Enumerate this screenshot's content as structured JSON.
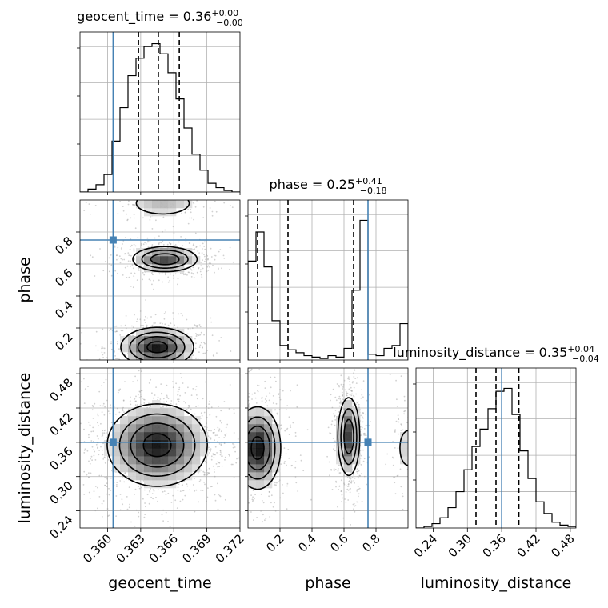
{
  "chart_data": {
    "type": "corner",
    "colors": {
      "truth": "#4682b4",
      "hist": "#000000",
      "grid": "#b0b0b0",
      "scatter": "#9a9a9a"
    },
    "parameters": [
      {
        "name": "geocent_time",
        "label": "geocent_time",
        "title": "geocent_time = 0.36",
        "title_value": "0.36",
        "title_plus": "+0.00",
        "title_minus": "−0.00",
        "range": [
          0.3575,
          0.372
        ],
        "ticks": [
          0.36,
          0.363,
          0.366,
          0.369,
          0.372
        ],
        "tick_labels": [
          "0.360",
          "0.363",
          "0.366",
          "0.369",
          "0.372"
        ],
        "truth": 0.3605,
        "quantiles": [
          0.3628,
          0.3646,
          0.3665
        ],
        "hist": [
          0.0,
          0.02,
          0.05,
          0.12,
          0.35,
          0.58,
          0.8,
          0.92,
          1.0,
          1.02,
          0.95,
          0.82,
          0.64,
          0.44,
          0.26,
          0.15,
          0.06,
          0.03,
          0.01,
          0.0
        ]
      },
      {
        "name": "phase",
        "label": "phase",
        "title": "phase = 0.25",
        "title_value": "0.25",
        "title_plus": "+0.41",
        "title_minus": "−0.18",
        "range": [
          0.0,
          1.0
        ],
        "ticks": [
          0.2,
          0.4,
          0.6,
          0.8
        ],
        "tick_labels": [
          "0.2",
          "0.4",
          "0.6",
          "0.8"
        ],
        "truth": 0.75,
        "quantiles": [
          0.06,
          0.25,
          0.66
        ],
        "hist": [
          0.68,
          0.88,
          0.64,
          0.27,
          0.1,
          0.07,
          0.05,
          0.03,
          0.02,
          0.01,
          0.03,
          0.02,
          0.08,
          0.48,
          0.96,
          0.04,
          0.03,
          0.08,
          0.1,
          0.25
        ]
      },
      {
        "name": "luminosity_distance",
        "label": "luminosity_distance",
        "title": "luminosity_distance = 0.35",
        "title_value": "0.35",
        "title_plus": "+0.04",
        "title_minus": "−0.04",
        "range": [
          0.21,
          0.49
        ],
        "ticks": [
          0.24,
          0.3,
          0.36,
          0.42,
          0.48
        ],
        "tick_labels": [
          "0.24",
          "0.30",
          "0.36",
          "0.42",
          "0.48"
        ],
        "truth": 0.36,
        "quantiles": [
          0.315,
          0.35,
          0.39
        ],
        "hist": [
          0.0,
          0.01,
          0.03,
          0.07,
          0.14,
          0.25,
          0.4,
          0.56,
          0.68,
          0.82,
          0.94,
          0.96,
          0.78,
          0.53,
          0.34,
          0.18,
          0.1,
          0.04,
          0.02,
          0.01
        ]
      }
    ],
    "hist_ymax": 1.1,
    "pairs": [
      {
        "x_param": 0,
        "y_param": 1,
        "modes": [
          {
            "mx": 0.3645,
            "my": 0.08,
            "sx": 0.0016,
            "sy": 0.06,
            "w": 0.48
          },
          {
            "mx": 0.3652,
            "my": 0.63,
            "sx": 0.0015,
            "sy": 0.04,
            "w": 0.38
          },
          {
            "mx": 0.365,
            "my": 0.98,
            "sx": 0.0018,
            "sy": 0.05,
            "w": 0.14
          }
        ],
        "contour_levels": [
          0.12,
          0.3,
          0.55,
          0.85
        ]
      },
      {
        "x_param": 0,
        "y_param": 2,
        "modes": [
          {
            "mx": 0.3645,
            "my": 0.355,
            "sx": 0.0022,
            "sy": 0.035,
            "w": 1.0
          }
        ],
        "contour_levels": [
          0.12,
          0.3,
          0.55,
          0.85
        ]
      },
      {
        "x_param": 1,
        "y_param": 2,
        "modes": [
          {
            "mx": 0.06,
            "my": 0.35,
            "sx": 0.07,
            "sy": 0.035,
            "w": 0.5
          },
          {
            "mx": 0.63,
            "my": 0.37,
            "sx": 0.035,
            "sy": 0.035,
            "w": 0.4
          },
          {
            "mx": 1.0,
            "my": 0.35,
            "sx": 0.05,
            "sy": 0.03,
            "w": 0.1
          }
        ],
        "contour_levels": [
          0.12,
          0.3,
          0.55,
          0.85
        ]
      }
    ],
    "grid": true
  }
}
